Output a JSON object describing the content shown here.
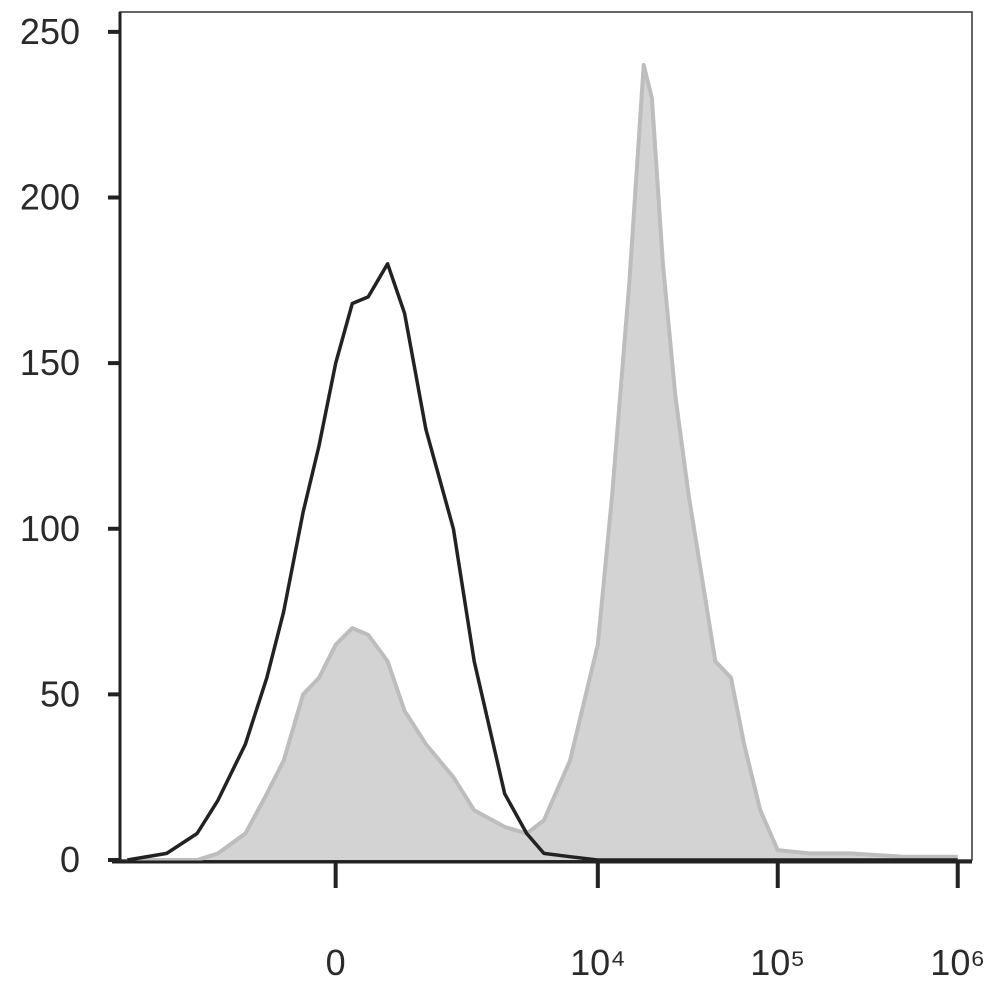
{
  "chart_data": {
    "type": "histogram-overlay",
    "xscale": "biexponential",
    "x": [
      -5000,
      -3000,
      -2000,
      -1500,
      -1000,
      -700,
      -500,
      -300,
      -150,
      0,
      150,
      300,
      500,
      700,
      1000,
      1500,
      2000,
      3000,
      4000,
      5000,
      7000,
      10000,
      12000,
      15000,
      18000,
      20000,
      23000,
      27000,
      32000,
      38000,
      45000,
      55000,
      65000,
      80000,
      100000,
      150000,
      250000,
      500000,
      1000000
    ],
    "series": [
      {
        "color": "#bdbdbd",
        "fill": "#d3d3d3",
        "values": [
          0,
          0,
          0,
          2,
          8,
          20,
          30,
          50,
          55,
          65,
          70,
          68,
          60,
          45,
          35,
          25,
          15,
          10,
          8,
          12,
          30,
          65,
          110,
          175,
          240,
          230,
          180,
          140,
          110,
          85,
          60,
          55,
          35,
          15,
          3,
          2,
          2,
          1,
          1
        ]
      },
      {
        "color": "#222222",
        "values": [
          0,
          2,
          8,
          18,
          35,
          55,
          75,
          105,
          125,
          150,
          168,
          170,
          180,
          165,
          130,
          100,
          60,
          20,
          8,
          2,
          1,
          0,
          0,
          0,
          0,
          0,
          0,
          0,
          0,
          0,
          0,
          0,
          0,
          0,
          0,
          0,
          0,
          0,
          0
        ]
      }
    ],
    "xlim": [
      -5500,
      1200000
    ],
    "xticks": [
      0,
      {
        "value": 10000,
        "label": "10⁴"
      },
      {
        "value": 100000,
        "label": "10⁵"
      },
      {
        "value": 1000000,
        "label": "10⁶"
      }
    ],
    "ylim": [
      0,
      256
    ],
    "yticks": [
      0,
      50,
      100,
      150,
      200,
      250
    ]
  }
}
